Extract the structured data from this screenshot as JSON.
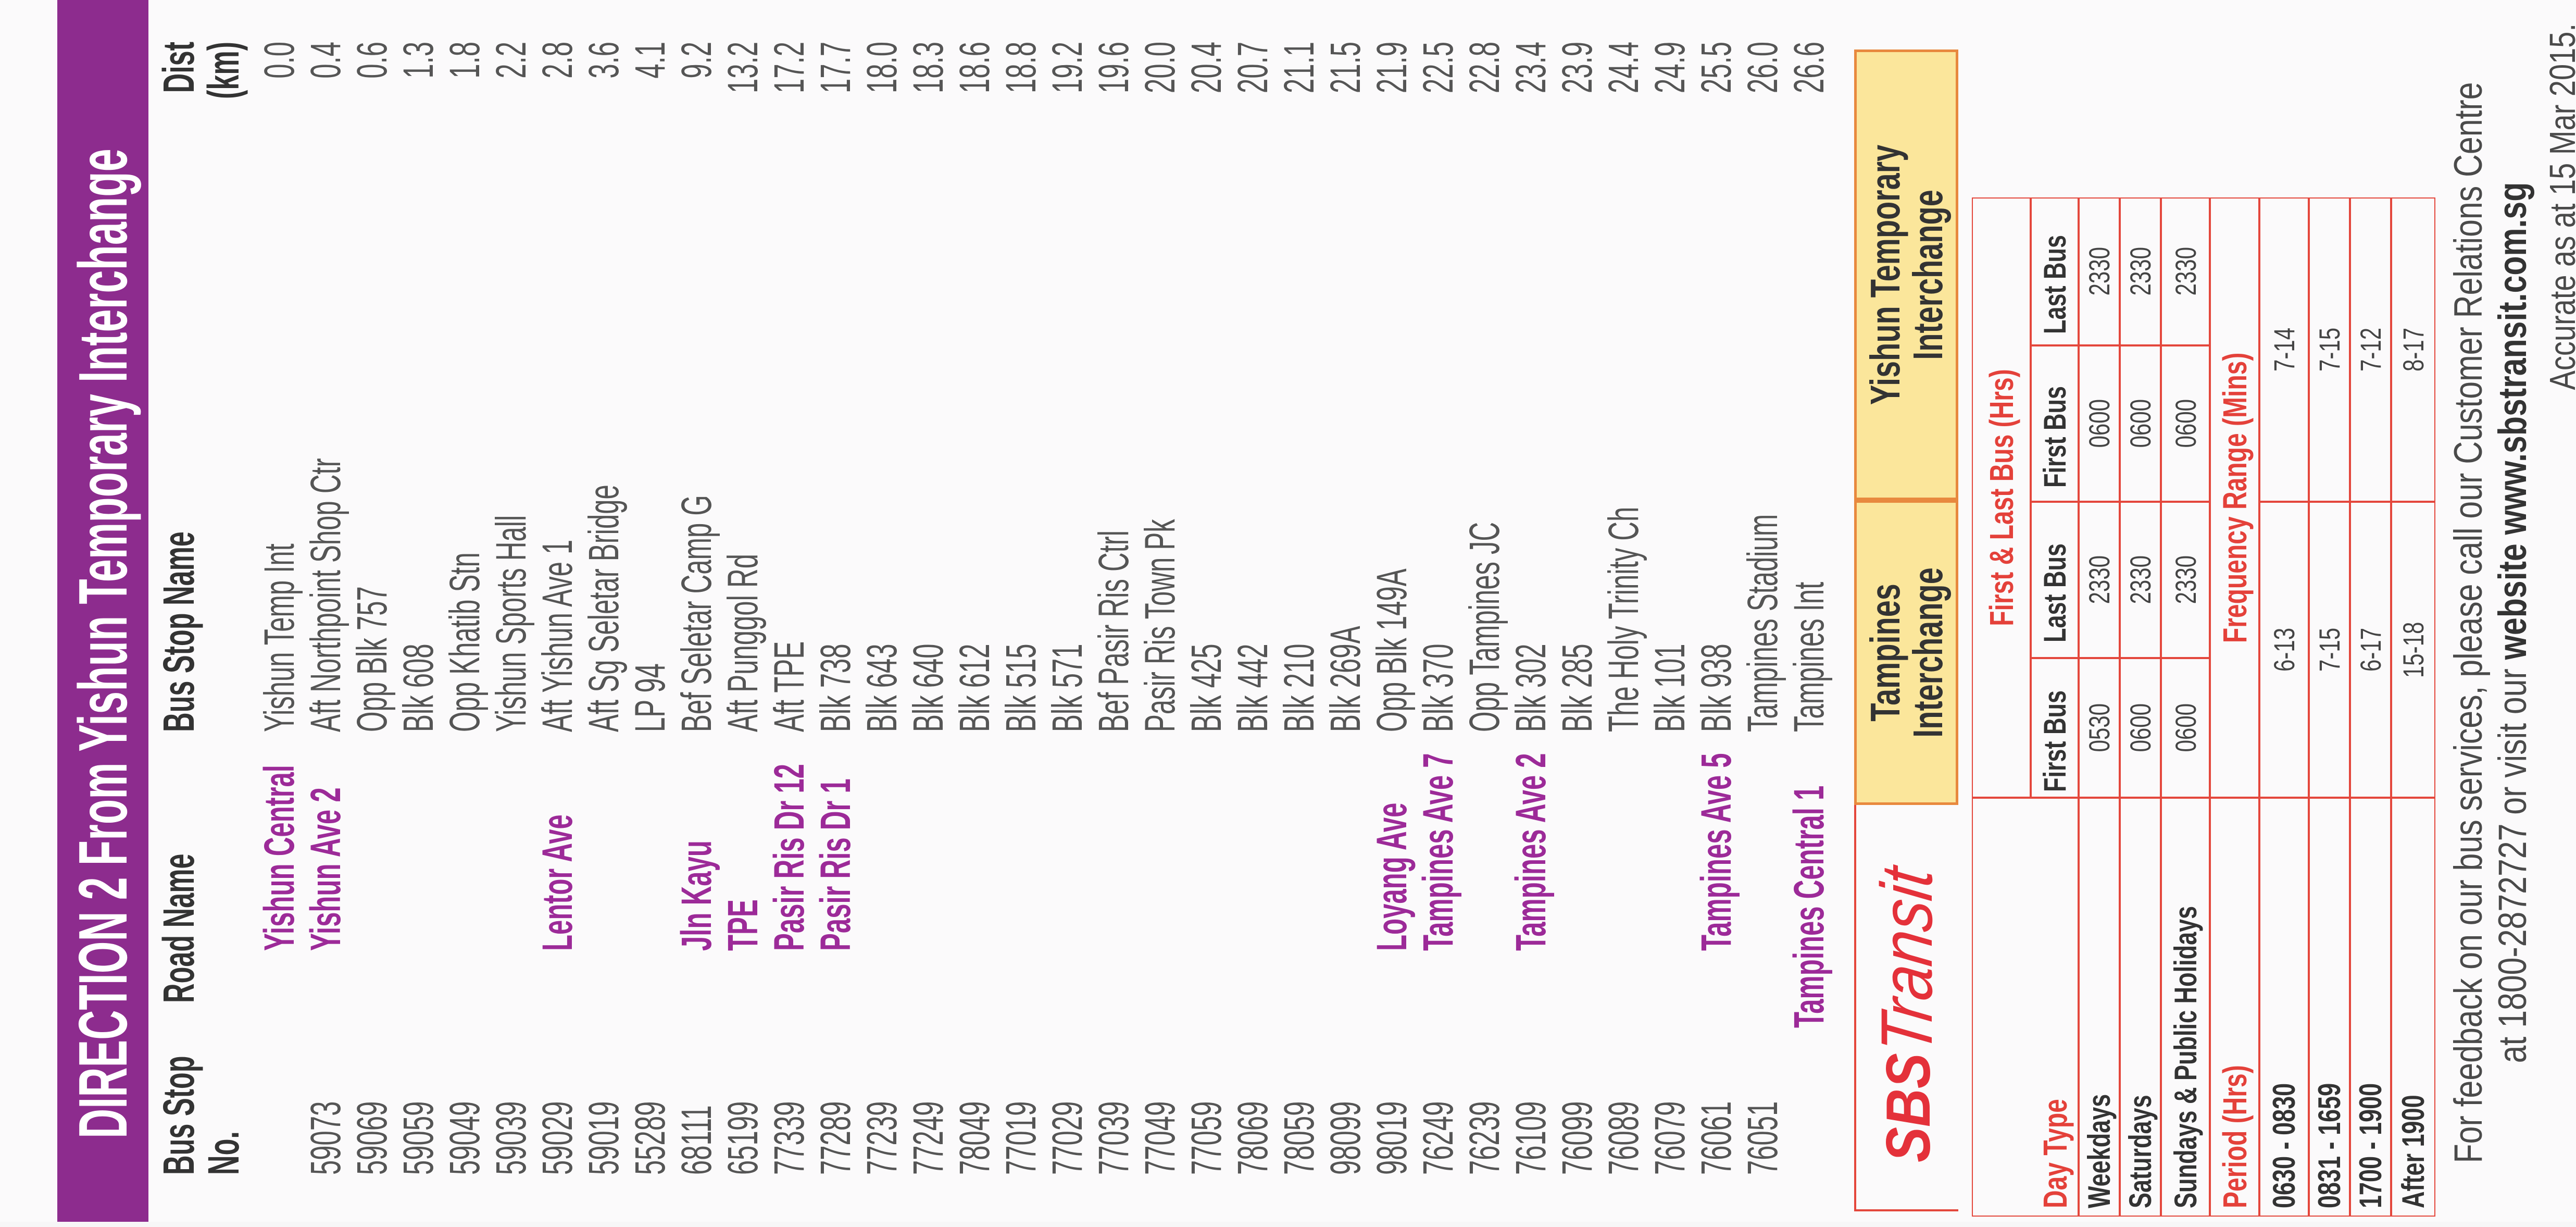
{
  "title": {
    "direction": "DIRECTION 2",
    "text": "From Yishun Temporary Interchange"
  },
  "columns": {
    "stop": [
      "Bus Stop",
      "No."
    ],
    "road": [
      "Road Name"
    ],
    "name": [
      "Bus Stop Name"
    ],
    "dist": [
      "Dist",
      "(km)"
    ]
  },
  "rows": [
    {
      "road": "Yishun Central",
      "name": "Yishun Temp Int",
      "dist": "0.0"
    },
    {
      "stop": "59073",
      "road": "Yishun Ave 2",
      "name": "Aft Northpoint Shop Ctr",
      "dist": "0.4"
    },
    {
      "stop": "59069",
      "name": "Opp Blk 757",
      "dist": "0.6"
    },
    {
      "stop": "59059",
      "name": "Blk 608",
      "dist": "1.3"
    },
    {
      "stop": "59049",
      "name": "Opp Khatib Stn",
      "dist": "1.8"
    },
    {
      "stop": "59039",
      "name": "Yishun Sports Hall",
      "dist": "2.2"
    },
    {
      "stop": "59029",
      "road": "Lentor Ave",
      "name": "Aft Yishun Ave 1",
      "dist": "2.8"
    },
    {
      "stop": "59019",
      "name": "Aft Sg Seletar Bridge",
      "dist": "3.6"
    },
    {
      "stop": "55289",
      "name": "LP 94",
      "dist": "4.1"
    },
    {
      "stop": "68111",
      "road": "Jln Kayu",
      "name": "Bef Seletar Camp G",
      "dist": "9.2"
    },
    {
      "stop": "65199",
      "road": "TPE",
      "name": "Aft Punggol Rd",
      "dist": "13.2"
    },
    {
      "stop": "77339",
      "road": "Pasir Ris Dr 12",
      "name": "Aft TPE",
      "dist": "17.2"
    },
    {
      "stop": "77289",
      "road": "Pasir Ris Dr 1",
      "name": "Blk 738",
      "dist": "17.7"
    },
    {
      "stop": "77239",
      "name": "Blk 643",
      "dist": "18.0"
    },
    {
      "stop": "77249",
      "name": "Blk 640",
      "dist": "18.3"
    },
    {
      "stop": "78049",
      "name": "Blk 612",
      "dist": "18.6"
    },
    {
      "stop": "77019",
      "name": "Blk 515",
      "dist": "18.8"
    },
    {
      "stop": "77029",
      "name": "Blk 571",
      "dist": "19.2"
    },
    {
      "stop": "77039",
      "name": "Bef Pasir Ris Ctrl",
      "dist": "19.6"
    },
    {
      "stop": "77049",
      "name": "Pasir Ris Town Pk",
      "dist": "20.0"
    },
    {
      "stop": "77059",
      "name": "Blk 425",
      "dist": "20.4"
    },
    {
      "stop": "78069",
      "name": "Blk 442",
      "dist": "20.7"
    },
    {
      "stop": "78059",
      "name": "Blk 210",
      "dist": "21.1"
    },
    {
      "stop": "98099",
      "name": "Blk 269A",
      "dist": "21.5"
    },
    {
      "stop": "98019",
      "road": "Loyang Ave",
      "name": "Opp Blk 149A",
      "dist": "21.9"
    },
    {
      "stop": "76249",
      "road": "Tampines Ave 7",
      "name": "Blk 370",
      "dist": "22.5"
    },
    {
      "stop": "76239",
      "name": "Opp Tampines JC",
      "dist": "22.8"
    },
    {
      "stop": "76109",
      "road": "Tampines Ave 2",
      "name": "Blk 302",
      "dist": "23.4"
    },
    {
      "stop": "76099",
      "name": "Blk 285",
      "dist": "23.9"
    },
    {
      "stop": "76089",
      "name": "The Holy Trinity Ch",
      "dist": "24.4"
    },
    {
      "stop": "76079",
      "name": "Blk 101",
      "dist": "24.9"
    },
    {
      "stop": "76061",
      "road": "Tampines Ave 5",
      "name": "Blk 938",
      "dist": "25.5"
    },
    {
      "stop": "76051",
      "name": "Tampines Stadium",
      "dist": "26.0"
    },
    {
      "road": "Tampines Central 1",
      "name": "Tampines Int",
      "dist": "26.6"
    }
  ],
  "logo": {
    "brand": "SBS",
    "name": "Transit"
  },
  "terminals": [
    [
      "Tampines",
      "Interchange"
    ],
    [
      "Yishun Temporary",
      "Interchange"
    ]
  ],
  "schedule": {
    "first_last_title": "First & Last Bus (Hrs)",
    "day_type_label": "Day Type",
    "sub": [
      "First Bus",
      "Last Bus",
      "First Bus",
      "Last Bus"
    ],
    "days": [
      {
        "day": "Weekdays",
        "times": [
          "0530",
          "2330",
          "0600",
          "2330"
        ]
      },
      {
        "day": "Saturdays",
        "times": [
          "0600",
          "2330",
          "0600",
          "2330"
        ]
      },
      {
        "day": "Sundays & Public Holidays",
        "times": [
          "0600",
          "2330",
          "0600",
          "2330"
        ]
      }
    ],
    "period_label": "Period (Hrs)",
    "frequency_title": "Frequency Range (Mins)",
    "periods": [
      {
        "period": "0630 - 0830",
        "ranges": [
          "6-13",
          "7-14"
        ]
      },
      {
        "period": "0831 - 1659",
        "ranges": [
          "7-15",
          "7-15"
        ]
      },
      {
        "period": "1700 - 1900",
        "ranges": [
          "6-17",
          "7-12"
        ]
      },
      {
        "period": "After 1900",
        "ranges": [
          "15-18",
          "8-17"
        ]
      }
    ]
  },
  "footer": {
    "line1": "For feedback on our bus services, please call our Customer Relations Centre",
    "line2_prefix": "at 1800-2872727 or visit our",
    "line2_bold": "website www.sbstransit.com.sg",
    "note": "Accurate as at 15 Mar 2015."
  }
}
